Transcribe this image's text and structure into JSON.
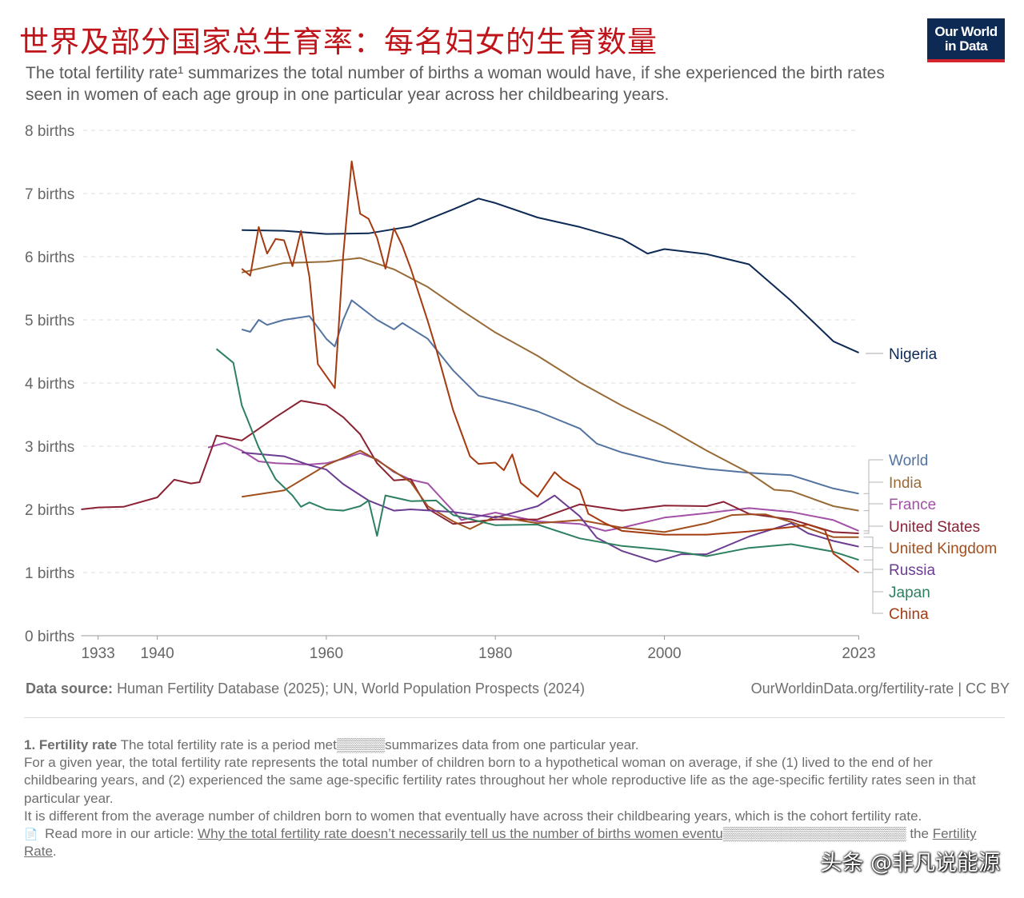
{
  "header": {
    "title": "世界及部分国家总生育率：每名妇女的生育数量",
    "subtitle": "The total fertility rate¹ summarizes the total number of births a woman would have, if she experienced the birth rates seen in women of each age group in one particular year across her childbearing years.",
    "logo_line1": "Our World",
    "logo_line2": "in Data"
  },
  "colors": {
    "Nigeria": "#0d2a54",
    "World": "#5373a0",
    "India": "#986a35",
    "France": "#a251a6",
    "United States": "#8b2233",
    "United Kingdom": "#a0501f",
    "Russia": "#6c3d91",
    "Japan": "#2e8061",
    "China": "#a53a11"
  },
  "chart_data": {
    "type": "line",
    "title": "世界及部分国家总生育率：每名妇女的生育数量",
    "ylabel": "births",
    "xlim": [
      1931,
      2023
    ],
    "ylim": [
      0,
      8
    ],
    "x_ticks": [
      "1933",
      "1940",
      "1960",
      "1980",
      "2000",
      "2023"
    ],
    "y_ticks": [
      "0 births",
      "1 births",
      "2 births",
      "3 births",
      "4 births",
      "5 births",
      "6 births",
      "7 births",
      "8 births"
    ],
    "grid": true,
    "legend": "right",
    "series": [
      {
        "name": "Nigeria",
        "points": [
          [
            1950,
            6.42
          ],
          [
            1955,
            6.41
          ],
          [
            1960,
            6.36
          ],
          [
            1965,
            6.37
          ],
          [
            1970,
            6.48
          ],
          [
            1975,
            6.75
          ],
          [
            1978,
            6.92
          ],
          [
            1980,
            6.85
          ],
          [
            1985,
            6.62
          ],
          [
            1990,
            6.47
          ],
          [
            1995,
            6.28
          ],
          [
            1998,
            6.05
          ],
          [
            2000,
            6.12
          ],
          [
            2005,
            6.04
          ],
          [
            2010,
            5.88
          ],
          [
            2015,
            5.3
          ],
          [
            2020,
            4.66
          ],
          [
            2023,
            4.48
          ]
        ]
      },
      {
        "name": "World",
        "points": [
          [
            1950,
            4.85
          ],
          [
            1951,
            4.81
          ],
          [
            1952,
            5.0
          ],
          [
            1953,
            4.92
          ],
          [
            1955,
            5.0
          ],
          [
            1958,
            5.06
          ],
          [
            1960,
            4.7
          ],
          [
            1961,
            4.58
          ],
          [
            1962,
            5.0
          ],
          [
            1963,
            5.31
          ],
          [
            1966,
            5.0
          ],
          [
            1968,
            4.85
          ],
          [
            1969,
            4.95
          ],
          [
            1972,
            4.7
          ],
          [
            1975,
            4.2
          ],
          [
            1978,
            3.8
          ],
          [
            1982,
            3.67
          ],
          [
            1985,
            3.55
          ],
          [
            1990,
            3.28
          ],
          [
            1992,
            3.04
          ],
          [
            1995,
            2.9
          ],
          [
            2000,
            2.74
          ],
          [
            2005,
            2.64
          ],
          [
            2010,
            2.58
          ],
          [
            2015,
            2.54
          ],
          [
            2020,
            2.33
          ],
          [
            2023,
            2.25
          ]
        ]
      },
      {
        "name": "India",
        "points": [
          [
            1950,
            5.75
          ],
          [
            1955,
            5.9
          ],
          [
            1960,
            5.92
          ],
          [
            1964,
            5.98
          ],
          [
            1968,
            5.8
          ],
          [
            1972,
            5.52
          ],
          [
            1976,
            5.15
          ],
          [
            1980,
            4.8
          ],
          [
            1985,
            4.43
          ],
          [
            1990,
            4.01
          ],
          [
            1995,
            3.64
          ],
          [
            2000,
            3.31
          ],
          [
            2005,
            2.93
          ],
          [
            2010,
            2.58
          ],
          [
            2013,
            2.31
          ],
          [
            2015,
            2.29
          ],
          [
            2020,
            2.05
          ],
          [
            2023,
            1.98
          ]
        ]
      },
      {
        "name": "France",
        "points": [
          [
            1946,
            2.98
          ],
          [
            1948,
            3.05
          ],
          [
            1950,
            2.93
          ],
          [
            1952,
            2.76
          ],
          [
            1954,
            2.73
          ],
          [
            1958,
            2.71
          ],
          [
            1960,
            2.73
          ],
          [
            1962,
            2.8
          ],
          [
            1964,
            2.89
          ],
          [
            1966,
            2.79
          ],
          [
            1968,
            2.59
          ],
          [
            1970,
            2.47
          ],
          [
            1972,
            2.41
          ],
          [
            1974,
            2.12
          ],
          [
            1976,
            1.83
          ],
          [
            1980,
            1.95
          ],
          [
            1985,
            1.81
          ],
          [
            1990,
            1.77
          ],
          [
            1993,
            1.66
          ],
          [
            1995,
            1.71
          ],
          [
            2000,
            1.87
          ],
          [
            2005,
            1.94
          ],
          [
            2010,
            2.02
          ],
          [
            2015,
            1.96
          ],
          [
            2020,
            1.83
          ],
          [
            2023,
            1.66
          ]
        ]
      },
      {
        "name": "United States",
        "points": [
          [
            1931,
            2.0
          ],
          [
            1933,
            2.03
          ],
          [
            1936,
            2.04
          ],
          [
            1940,
            2.19
          ],
          [
            1942,
            2.47
          ],
          [
            1944,
            2.41
          ],
          [
            1945,
            2.43
          ],
          [
            1947,
            3.17
          ],
          [
            1950,
            3.09
          ],
          [
            1954,
            3.46
          ],
          [
            1957,
            3.72
          ],
          [
            1960,
            3.65
          ],
          [
            1962,
            3.46
          ],
          [
            1964,
            3.19
          ],
          [
            1966,
            2.73
          ],
          [
            1968,
            2.46
          ],
          [
            1970,
            2.48
          ],
          [
            1972,
            2.01
          ],
          [
            1975,
            1.77
          ],
          [
            1980,
            1.84
          ],
          [
            1985,
            1.84
          ],
          [
            1990,
            2.08
          ],
          [
            1995,
            1.98
          ],
          [
            2000,
            2.06
          ],
          [
            2005,
            2.05
          ],
          [
            2007,
            2.12
          ],
          [
            2010,
            1.93
          ],
          [
            2015,
            1.84
          ],
          [
            2020,
            1.64
          ],
          [
            2023,
            1.62
          ]
        ]
      },
      {
        "name": "United Kingdom",
        "points": [
          [
            1950,
            2.2
          ],
          [
            1955,
            2.3
          ],
          [
            1960,
            2.7
          ],
          [
            1964,
            2.93
          ],
          [
            1966,
            2.78
          ],
          [
            1970,
            2.43
          ],
          [
            1972,
            2.05
          ],
          [
            1975,
            1.81
          ],
          [
            1977,
            1.69
          ],
          [
            1980,
            1.89
          ],
          [
            1985,
            1.78
          ],
          [
            1990,
            1.83
          ],
          [
            1995,
            1.71
          ],
          [
            2000,
            1.64
          ],
          [
            2005,
            1.78
          ],
          [
            2008,
            1.91
          ],
          [
            2010,
            1.92
          ],
          [
            2012,
            1.92
          ],
          [
            2015,
            1.8
          ],
          [
            2020,
            1.56
          ],
          [
            2023,
            1.56
          ]
        ]
      },
      {
        "name": "Russia",
        "points": [
          [
            1950,
            2.9
          ],
          [
            1955,
            2.84
          ],
          [
            1958,
            2.7
          ],
          [
            1960,
            2.63
          ],
          [
            1962,
            2.4
          ],
          [
            1965,
            2.14
          ],
          [
            1968,
            1.98
          ],
          [
            1970,
            2.0
          ],
          [
            1975,
            1.96
          ],
          [
            1980,
            1.87
          ],
          [
            1985,
            2.05
          ],
          [
            1987,
            2.22
          ],
          [
            1990,
            1.89
          ],
          [
            1992,
            1.55
          ],
          [
            1995,
            1.34
          ],
          [
            1999,
            1.17
          ],
          [
            2002,
            1.29
          ],
          [
            2005,
            1.29
          ],
          [
            2010,
            1.57
          ],
          [
            2015,
            1.78
          ],
          [
            2017,
            1.62
          ],
          [
            2020,
            1.5
          ],
          [
            2023,
            1.41
          ]
        ]
      },
      {
        "name": "Japan",
        "points": [
          [
            1947,
            4.54
          ],
          [
            1949,
            4.32
          ],
          [
            1950,
            3.65
          ],
          [
            1952,
            2.98
          ],
          [
            1954,
            2.48
          ],
          [
            1956,
            2.22
          ],
          [
            1957,
            2.04
          ],
          [
            1958,
            2.11
          ],
          [
            1960,
            2.0
          ],
          [
            1962,
            1.98
          ],
          [
            1964,
            2.05
          ],
          [
            1965,
            2.14
          ],
          [
            1966,
            1.58
          ],
          [
            1967,
            2.22
          ],
          [
            1970,
            2.13
          ],
          [
            1973,
            2.14
          ],
          [
            1975,
            1.91
          ],
          [
            1980,
            1.75
          ],
          [
            1985,
            1.76
          ],
          [
            1990,
            1.54
          ],
          [
            1995,
            1.42
          ],
          [
            2000,
            1.36
          ],
          [
            2005,
            1.26
          ],
          [
            2010,
            1.39
          ],
          [
            2015,
            1.45
          ],
          [
            2020,
            1.33
          ],
          [
            2023,
            1.2
          ]
        ]
      },
      {
        "name": "China",
        "points": [
          [
            1950,
            5.81
          ],
          [
            1951,
            5.7
          ],
          [
            1952,
            6.47
          ],
          [
            1953,
            6.05
          ],
          [
            1954,
            6.28
          ],
          [
            1955,
            6.26
          ],
          [
            1956,
            5.85
          ],
          [
            1957,
            6.41
          ],
          [
            1958,
            5.68
          ],
          [
            1959,
            4.3
          ],
          [
            1961,
            3.92
          ],
          [
            1962,
            6.02
          ],
          [
            1963,
            7.51
          ],
          [
            1964,
            6.68
          ],
          [
            1965,
            6.6
          ],
          [
            1966,
            6.3
          ],
          [
            1967,
            5.81
          ],
          [
            1968,
            6.45
          ],
          [
            1969,
            6.17
          ],
          [
            1970,
            5.81
          ],
          [
            1972,
            4.98
          ],
          [
            1973,
            4.54
          ],
          [
            1975,
            3.57
          ],
          [
            1977,
            2.84
          ],
          [
            1978,
            2.72
          ],
          [
            1980,
            2.74
          ],
          [
            1981,
            2.62
          ],
          [
            1982,
            2.87
          ],
          [
            1983,
            2.42
          ],
          [
            1985,
            2.2
          ],
          [
            1987,
            2.59
          ],
          [
            1988,
            2.47
          ],
          [
            1990,
            2.31
          ],
          [
            1991,
            1.93
          ],
          [
            1993,
            1.78
          ],
          [
            1995,
            1.66
          ],
          [
            2000,
            1.6
          ],
          [
            2005,
            1.6
          ],
          [
            2010,
            1.65
          ],
          [
            2015,
            1.72
          ],
          [
            2017,
            1.76
          ],
          [
            2019,
            1.67
          ],
          [
            2020,
            1.3
          ],
          [
            2023,
            1.0
          ]
        ]
      }
    ]
  },
  "source": {
    "label": "Data source:",
    "text": "Human Fertility Database (2025); UN, World Population Prospects (2024)",
    "credit": "OurWorldinData.org/fertility-rate | CC BY"
  },
  "notes": {
    "note1_title": "1. Fertility rate",
    "note1_text": "The total fertility rate is a period met▒▒▒▒▒summarizes data from one particular year.",
    "para2": "For a given year, the total fertility rate represents the total number of children born to a hypothetical woman on average, if she (1) lived to the end of her childbearing years, and (2) experienced the same age-specific fertility rates throughout her whole reproductive life as the age-specific fertility rates seen in that particular year.",
    "para3": "It is different from the average number of children born to women that eventually have across their childbearing years, which is the cohort fertility rate.",
    "read_more_prefix": "Read more in our article: ",
    "article_link": "Why the total fertility rate doesn’t necessarily tell us the number of births women eventu▒▒▒▒▒▒▒▒▒▒▒▒▒▒▒▒▒▒▒",
    "line_tail": "the ",
    "fertility_rate_link": "Fertility Rate",
    "period": "."
  },
  "watermark": "头条 @非凡说能源"
}
